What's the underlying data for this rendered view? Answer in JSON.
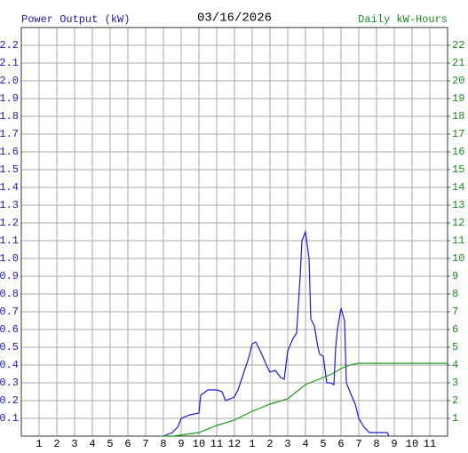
{
  "chart_data": {
    "type": "line",
    "title": "03/16/2026",
    "y_label": "Power Output (kW)",
    "y2_label": "Daily kW-Hours",
    "grid": true,
    "grid_color": "#aaaaaa",
    "y_color": "#1a1aa6",
    "y2_color": "#1a8a1a",
    "xlim": [
      0,
      24
    ],
    "xticks": [
      1,
      2,
      3,
      4,
      5,
      6,
      7,
      8,
      9,
      10,
      11,
      12,
      {
        "value": 13,
        "label": "1"
      },
      {
        "value": 14,
        "label": "2"
      },
      {
        "value": 15,
        "label": "3"
      },
      {
        "value": 16,
        "label": "4"
      },
      {
        "value": 17,
        "label": "5"
      },
      {
        "value": 18,
        "label": "6"
      },
      {
        "value": 19,
        "label": "7"
      },
      {
        "value": 20,
        "label": "8"
      },
      {
        "value": 21,
        "label": "9"
      },
      {
        "value": 22,
        "label": "10"
      },
      {
        "value": 23,
        "label": "11"
      }
    ],
    "ylim": [
      0,
      2.3
    ],
    "yticks": [
      0.1,
      0.2,
      0.3,
      0.4,
      0.5,
      0.6,
      0.7,
      0.8,
      0.9,
      {
        "value": 1,
        "label": "1.0"
      },
      1.1,
      1.2,
      1.3,
      1.4,
      1.5,
      1.6,
      1.7,
      1.8,
      1.9,
      {
        "value": 2,
        "label": "2.0"
      },
      2.1,
      2.2
    ],
    "y2lim": [
      0,
      23
    ],
    "y2ticks": [
      1,
      2,
      3,
      4,
      5,
      6,
      7,
      8,
      9,
      10,
      11,
      12,
      13,
      14,
      15,
      16,
      17,
      18,
      19,
      20,
      21,
      22
    ],
    "series": [
      {
        "name": "Power Output",
        "color": "#1a1ad6",
        "axis": "y",
        "x": [
          8,
          8.5,
          8.8,
          9,
          9.5,
          10,
          10.1,
          10.5,
          11,
          11.3,
          11.5,
          12,
          12.2,
          12.5,
          12.8,
          13,
          13.2,
          13.5,
          13.8,
          14,
          14.3,
          14.6,
          14.8,
          15,
          15.3,
          15.5,
          15.7,
          15.8,
          16,
          16.2,
          16.3,
          16.5,
          16.7,
          16.8,
          17,
          17.2,
          17.4,
          17.6,
          17.7,
          17.8,
          18,
          18.2,
          18.3,
          18.5,
          18.8,
          19,
          19.3,
          19.6,
          20,
          20.6,
          20.7
        ],
        "values": [
          0,
          0.02,
          0.05,
          0.1,
          0.12,
          0.13,
          0.23,
          0.26,
          0.26,
          0.25,
          0.2,
          0.22,
          0.26,
          0.35,
          0.44,
          0.52,
          0.53,
          0.47,
          0.4,
          0.36,
          0.37,
          0.33,
          0.32,
          0.48,
          0.55,
          0.58,
          0.9,
          1.1,
          1.15,
          1.0,
          0.66,
          0.62,
          0.5,
          0.46,
          0.45,
          0.3,
          0.3,
          0.29,
          0.5,
          0.6,
          0.72,
          0.65,
          0.3,
          0.25,
          0.18,
          0.1,
          0.05,
          0.02,
          0.02,
          0.02,
          0
        ]
      },
      {
        "name": "Daily kW-Hours",
        "color": "#1a9a1a",
        "axis": "y2",
        "x": [
          8,
          8.5,
          10,
          11,
          12,
          13,
          14,
          15,
          16,
          17,
          17.5,
          18,
          18.5,
          19,
          20,
          24
        ],
        "values": [
          0,
          0,
          0.2,
          0.6,
          0.9,
          1.4,
          1.8,
          2.1,
          2.9,
          3.3,
          3.5,
          3.8,
          4.0,
          4.1,
          4.1,
          4.1
        ]
      }
    ]
  }
}
